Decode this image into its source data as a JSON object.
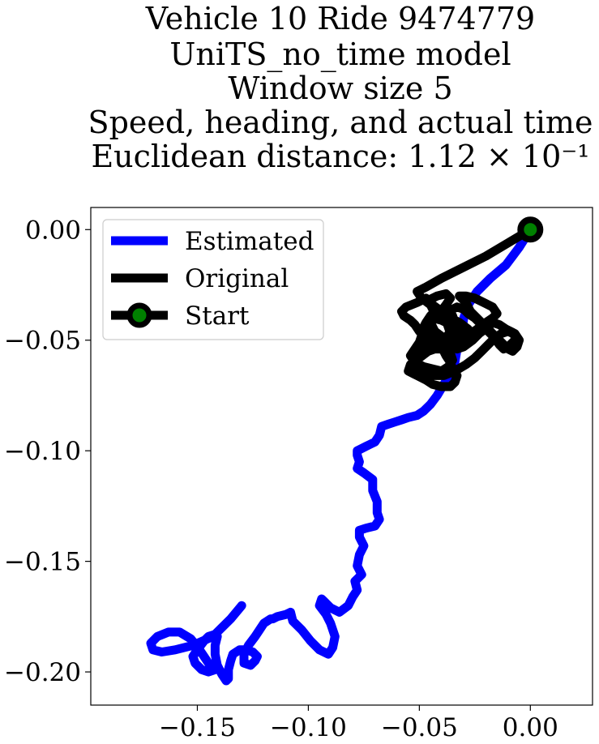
{
  "chart_data": {
    "type": "line",
    "title_lines": [
      "Vehicle 10 Ride 9474779",
      "UniTS_no_time model",
      "Window size 5",
      "Speed, heading, and actual time",
      "Euclidean distance: 1.12 × 10⁻¹"
    ],
    "xlabel": "",
    "ylabel": "",
    "xlim": [
      -0.198,
      0.028
    ],
    "ylim": [
      -0.215,
      0.01
    ],
    "xticks": [
      -0.15,
      -0.1,
      -0.05,
      0.0
    ],
    "xtick_labels": [
      "−0.15",
      "−0.10",
      "−0.05",
      "0.00"
    ],
    "yticks": [
      0.0,
      -0.05,
      -0.1,
      -0.15,
      -0.2
    ],
    "ytick_labels": [
      "0.00",
      "−0.05",
      "−0.10",
      "−0.15",
      "−0.20"
    ],
    "grid": false,
    "legend_position": "top-left",
    "legend": [
      {
        "label": "Estimated",
        "color": "#0000ff",
        "marker": false
      },
      {
        "label": "Original",
        "color": "#000000",
        "marker": false
      },
      {
        "label": "Start",
        "color": "#000000",
        "marker": true,
        "marker_face": "#008000"
      }
    ],
    "series": [
      {
        "name": "Estimated",
        "color": "#0000ff",
        "x": [
          0.0,
          -0.005,
          -0.011,
          -0.018,
          -0.024,
          -0.028,
          -0.03,
          -0.031,
          -0.033,
          -0.034,
          -0.036,
          -0.039,
          -0.042,
          -0.045,
          -0.048,
          -0.051,
          -0.055,
          -0.058,
          -0.061,
          -0.064,
          -0.067,
          -0.068,
          -0.07,
          -0.072,
          -0.074,
          -0.076,
          -0.078,
          -0.078,
          -0.077,
          -0.078,
          -0.075,
          -0.071,
          -0.071,
          -0.069,
          -0.069,
          -0.068,
          -0.07,
          -0.074,
          -0.077,
          -0.077,
          -0.075,
          -0.077,
          -0.078,
          -0.076,
          -0.079,
          -0.078,
          -0.08,
          -0.082,
          -0.086,
          -0.09,
          -0.093,
          -0.094,
          -0.095,
          -0.092,
          -0.09,
          -0.088,
          -0.089,
          -0.091,
          -0.095,
          -0.099,
          -0.103,
          -0.107,
          -0.108,
          -0.11,
          -0.114,
          -0.116,
          -0.117,
          -0.12,
          -0.122,
          -0.124,
          -0.127,
          -0.129,
          -0.129,
          -0.126,
          -0.124,
          -0.123,
          -0.125,
          -0.128,
          -0.131,
          -0.134,
          -0.135,
          -0.136,
          -0.136,
          -0.137,
          -0.139,
          -0.141,
          -0.142,
          -0.142,
          -0.141,
          -0.142,
          -0.145,
          -0.147,
          -0.15,
          -0.152,
          -0.151,
          -0.148,
          -0.145,
          -0.142,
          -0.145,
          -0.149,
          -0.153,
          -0.158,
          -0.163,
          -0.168,
          -0.171,
          -0.17,
          -0.166,
          -0.16,
          -0.152,
          -0.143,
          -0.135,
          -0.13
        ],
        "y": [
          0.0,
          -0.008,
          -0.016,
          -0.022,
          -0.028,
          -0.034,
          -0.04,
          -0.047,
          -0.054,
          -0.06,
          -0.065,
          -0.07,
          -0.075,
          -0.079,
          -0.082,
          -0.084,
          -0.085,
          -0.086,
          -0.087,
          -0.088,
          -0.089,
          -0.093,
          -0.096,
          -0.097,
          -0.098,
          -0.099,
          -0.1,
          -0.102,
          -0.105,
          -0.108,
          -0.11,
          -0.113,
          -0.118,
          -0.123,
          -0.128,
          -0.131,
          -0.134,
          -0.135,
          -0.136,
          -0.139,
          -0.143,
          -0.147,
          -0.152,
          -0.156,
          -0.159,
          -0.163,
          -0.166,
          -0.17,
          -0.173,
          -0.171,
          -0.168,
          -0.167,
          -0.17,
          -0.174,
          -0.178,
          -0.184,
          -0.189,
          -0.192,
          -0.19,
          -0.186,
          -0.181,
          -0.177,
          -0.173,
          -0.174,
          -0.175,
          -0.176,
          -0.176,
          -0.178,
          -0.181,
          -0.184,
          -0.188,
          -0.192,
          -0.196,
          -0.197,
          -0.195,
          -0.193,
          -0.191,
          -0.19,
          -0.19,
          -0.192,
          -0.195,
          -0.199,
          -0.203,
          -0.204,
          -0.201,
          -0.197,
          -0.192,
          -0.188,
          -0.184,
          -0.183,
          -0.184,
          -0.186,
          -0.19,
          -0.193,
          -0.196,
          -0.199,
          -0.2,
          -0.199,
          -0.196,
          -0.19,
          -0.185,
          -0.182,
          -0.182,
          -0.184,
          -0.187,
          -0.19,
          -0.191,
          -0.19,
          -0.188,
          -0.184,
          -0.176,
          -0.17
        ]
      },
      {
        "name": "Original",
        "color": "#000000",
        "x": [
          0.0,
          -0.01,
          -0.02,
          -0.03,
          -0.04,
          -0.047,
          -0.051,
          -0.049,
          -0.045,
          -0.043,
          -0.039,
          -0.035,
          -0.033,
          -0.03,
          -0.028,
          -0.032,
          -0.036,
          -0.04,
          -0.044,
          -0.046,
          -0.042,
          -0.038,
          -0.036,
          -0.038,
          -0.041,
          -0.045,
          -0.043,
          -0.039,
          -0.033,
          -0.028,
          -0.024,
          -0.02,
          -0.017,
          -0.015,
          -0.017,
          -0.021,
          -0.025,
          -0.029,
          -0.032,
          -0.029,
          -0.027,
          -0.023,
          -0.019,
          -0.015,
          -0.012,
          -0.01,
          -0.008,
          -0.006,
          -0.005,
          -0.007,
          -0.011,
          -0.014,
          -0.017,
          -0.019,
          -0.023,
          -0.026,
          -0.03,
          -0.033,
          -0.036,
          -0.038,
          -0.036,
          -0.034,
          -0.035,
          -0.037,
          -0.04,
          -0.043,
          -0.045,
          -0.047,
          -0.048,
          -0.049,
          -0.05,
          -0.052,
          -0.054,
          -0.052,
          -0.048,
          -0.044,
          -0.04,
          -0.037,
          -0.035,
          -0.036,
          -0.039,
          -0.043,
          -0.046,
          -0.05,
          -0.054,
          -0.055,
          -0.051,
          -0.047,
          -0.044,
          -0.04,
          -0.036,
          -0.034,
          -0.033,
          -0.035,
          -0.036,
          -0.038,
          -0.039,
          -0.041,
          -0.044,
          -0.047,
          -0.049,
          -0.051,
          -0.053,
          -0.052,
          -0.048,
          -0.044,
          -0.039,
          -0.034,
          -0.029,
          -0.025,
          -0.022,
          -0.019,
          -0.016,
          -0.013,
          -0.01,
          -0.008,
          -0.006,
          -0.008,
          -0.01,
          -0.012,
          -0.014,
          -0.016,
          -0.019,
          -0.022,
          -0.025,
          -0.028,
          -0.03,
          -0.033,
          -0.035,
          -0.037,
          -0.038,
          -0.037,
          -0.036,
          -0.037,
          -0.039,
          -0.042,
          -0.046,
          -0.048,
          -0.047,
          -0.044,
          -0.04,
          -0.036,
          -0.034,
          -0.033,
          -0.035,
          -0.039,
          -0.043,
          -0.047,
          -0.05,
          -0.052,
          -0.054,
          -0.057,
          -0.058,
          -0.056,
          -0.051,
          -0.047
        ],
        "y": [
          0.0,
          -0.006,
          -0.012,
          -0.017,
          -0.022,
          -0.026,
          -0.028,
          -0.031,
          -0.034,
          -0.038,
          -0.041,
          -0.044,
          -0.046,
          -0.048,
          -0.045,
          -0.042,
          -0.04,
          -0.037,
          -0.034,
          -0.032,
          -0.03,
          -0.029,
          -0.031,
          -0.034,
          -0.038,
          -0.042,
          -0.046,
          -0.049,
          -0.05,
          -0.048,
          -0.045,
          -0.042,
          -0.04,
          -0.038,
          -0.035,
          -0.033,
          -0.031,
          -0.03,
          -0.03,
          -0.033,
          -0.037,
          -0.041,
          -0.045,
          -0.049,
          -0.052,
          -0.054,
          -0.055,
          -0.053,
          -0.05,
          -0.047,
          -0.045,
          -0.043,
          -0.042,
          -0.044,
          -0.047,
          -0.05,
          -0.053,
          -0.054,
          -0.052,
          -0.049,
          -0.046,
          -0.042,
          -0.039,
          -0.037,
          -0.036,
          -0.037,
          -0.039,
          -0.042,
          -0.045,
          -0.048,
          -0.051,
          -0.054,
          -0.057,
          -0.06,
          -0.062,
          -0.063,
          -0.064,
          -0.062,
          -0.059,
          -0.056,
          -0.054,
          -0.054,
          -0.055,
          -0.058,
          -0.061,
          -0.064,
          -0.066,
          -0.068,
          -0.07,
          -0.071,
          -0.071,
          -0.069,
          -0.066,
          -0.063,
          -0.06,
          -0.057,
          -0.055,
          -0.053,
          -0.052,
          -0.052,
          -0.053,
          -0.056,
          -0.059,
          -0.062,
          -0.064,
          -0.066,
          -0.066,
          -0.064,
          -0.061,
          -0.058,
          -0.055,
          -0.052,
          -0.049,
          -0.047,
          -0.046,
          -0.047,
          -0.049,
          -0.051,
          -0.053,
          -0.054,
          -0.052,
          -0.049,
          -0.046,
          -0.043,
          -0.04,
          -0.038,
          -0.036,
          -0.035,
          -0.036,
          -0.038,
          -0.041,
          -0.044,
          -0.047,
          -0.049,
          -0.05,
          -0.049,
          -0.047,
          -0.044,
          -0.042,
          -0.04,
          -0.041,
          -0.043,
          -0.046,
          -0.049,
          -0.051,
          -0.052,
          -0.051,
          -0.049,
          -0.046,
          -0.043,
          -0.041,
          -0.039,
          -0.037,
          -0.035,
          -0.033,
          -0.031
        ]
      }
    ],
    "start_point": {
      "x": 0.0,
      "y": 0.0,
      "label": "Start",
      "edge_color": "#000000",
      "face_color": "#008000"
    }
  }
}
